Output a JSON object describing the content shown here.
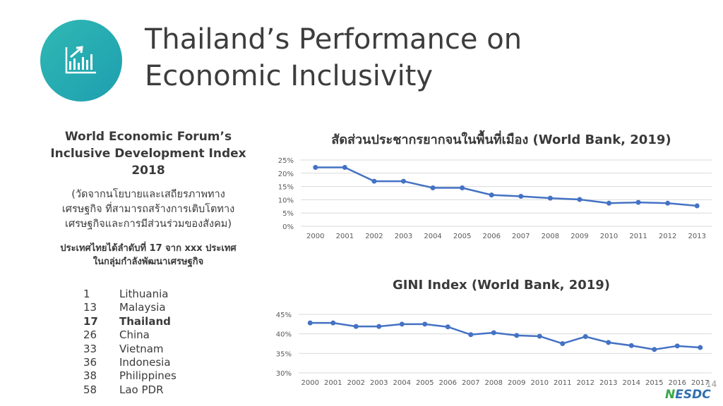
{
  "title_line1": "Thailand’s Performance on",
  "title_line2": "Economic Inclusivity",
  "wef": {
    "title_line1": "World Economic Forum’s",
    "title_line2": "Inclusive Development Index",
    "title_line3": "2018",
    "subtitle_line1": "(วัดจากนโยบายและเสถียรภาพทาง",
    "subtitle_line2": "เศรษฐกิจ ที่สามารถสร้างการเติบโตทาง",
    "subtitle_line3": "เศรษฐกิจและการมีส่วนร่วมของสังคม)",
    "note_line1": "ประเทศไทยได้ลำดับที่ 17 จาก xxx ประเทศ",
    "note_line2": "ในกลุ่มกำลังพัฒนาเศรษฐกิจ"
  },
  "ranking": [
    {
      "rank": "1",
      "country": "Lithuania"
    },
    {
      "rank": "13",
      "country": "Malaysia"
    },
    {
      "rank": "17",
      "country": "Thailand"
    },
    {
      "rank": "26",
      "country": "China"
    },
    {
      "rank": "33",
      "country": "Vietnam"
    },
    {
      "rank": "36",
      "country": "Indonesia"
    },
    {
      "rank": "38",
      "country": "Philippines"
    },
    {
      "rank": "58",
      "country": "Lao PDR"
    }
  ],
  "page_number": "14",
  "logo_text": "ESDC",
  "logo_letter": "N",
  "colors": {
    "line": "#4472c4",
    "accent": "#2fb8b3",
    "grid": "#d9d9d9"
  },
  "icon": "chart-growth-icon",
  "chart_data": [
    {
      "type": "line",
      "title": "สัดส่วนประชากรยากจนในพื้นที่เมือง (World Bank, 2019)",
      "x": [
        "2000",
        "2001",
        "2002",
        "2003",
        "2004",
        "2005",
        "2006",
        "2007",
        "2008",
        "2009",
        "2010",
        "2011",
        "2012",
        "2013"
      ],
      "values": [
        22.2,
        22.2,
        17.0,
        17.0,
        14.5,
        14.5,
        11.8,
        11.3,
        10.6,
        10.1,
        8.7,
        9.0,
        8.7,
        7.7
      ],
      "ylim": [
        0,
        25
      ],
      "yticks": [
        "0%",
        "5%",
        "10%",
        "15%",
        "20%",
        "25%"
      ],
      "grid": true
    },
    {
      "type": "line",
      "title": "GINI Index (World Bank, 2019)",
      "x": [
        "2000",
        "2001",
        "2002",
        "2003",
        "2004",
        "2005",
        "2006",
        "2007",
        "2008",
        "2009",
        "2010",
        "2011",
        "2012",
        "2013",
        "2014",
        "2015",
        "2016",
        "2017"
      ],
      "values": [
        42.8,
        42.8,
        41.9,
        41.9,
        42.5,
        42.5,
        41.8,
        39.8,
        40.3,
        39.6,
        39.4,
        37.5,
        39.3,
        37.8,
        37.0,
        36.0,
        36.9,
        36.5
      ],
      "ylim": [
        30,
        45
      ],
      "yticks": [
        "30%",
        "35%",
        "40%",
        "45%"
      ],
      "grid": true
    }
  ]
}
